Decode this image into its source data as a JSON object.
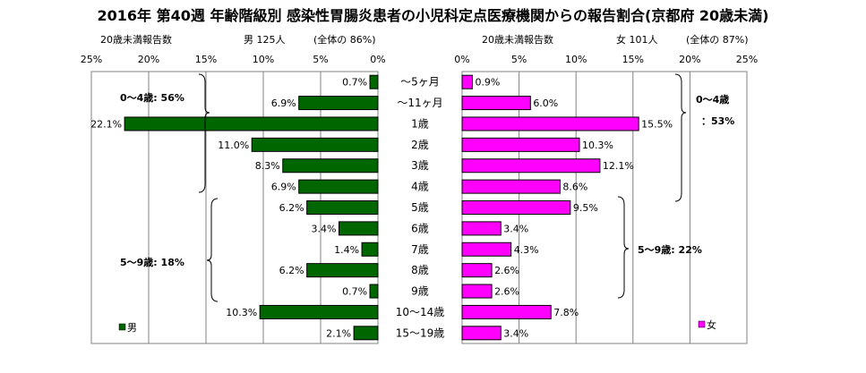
{
  "title": "2016年 第40週 年齢階級別 感染性胃腸炎患者の小児科定点医療機関からの報告割合(京都府 20歳未満)",
  "left_header": {
    "caption": "20歳未満報告数",
    "label": "男 125人",
    "paren": "(全体の 86%)"
  },
  "right_header": {
    "caption": "20歳未満報告数",
    "label": "女 101人",
    "paren": "(全体の 87%)"
  },
  "colors": {
    "male": "#006600",
    "female": "#ff00ff"
  },
  "chart_data": {
    "type": "bar",
    "orientation": "horizontal-butterfly",
    "categories": [
      "～5ヶ月",
      "～11ヶ月",
      "1歳",
      "2歳",
      "3歳",
      "4歳",
      "5歳",
      "6歳",
      "7歳",
      "8歳",
      "9歳",
      "10～14歳",
      "15～19歳"
    ],
    "series": [
      {
        "name": "男",
        "values": [
          0.7,
          6.9,
          22.1,
          11.0,
          8.3,
          6.9,
          6.2,
          3.4,
          1.4,
          6.2,
          0.7,
          10.3,
          2.1
        ],
        "labels": [
          "0.7%",
          "6.9%",
          "22.1%",
          "11.0%",
          "8.3%",
          "6.9%",
          "6.2%",
          "3.4%",
          "1.4%",
          "6.2%",
          "0.7%",
          "10.3%",
          "2.1%"
        ]
      },
      {
        "name": "女",
        "values": [
          0.9,
          6.0,
          15.5,
          10.3,
          12.1,
          8.6,
          9.5,
          3.4,
          4.3,
          2.6,
          2.6,
          7.8,
          3.4
        ],
        "labels": [
          "0.9%",
          "6.0%",
          "15.5%",
          "10.3%",
          "12.1%",
          "8.6%",
          "9.5%",
          "3.4%",
          "4.3%",
          "2.6%",
          "2.6%",
          "7.8%",
          "3.4%"
        ]
      }
    ],
    "x_ticks_left": [
      "25%",
      "20%",
      "15%",
      "10%",
      "5%",
      "0%"
    ],
    "x_ticks_right": [
      "0%",
      "5%",
      "10%",
      "15%",
      "20%",
      "25%"
    ],
    "xlim": [
      0,
      25
    ],
    "grid": true,
    "group_labels": {
      "male": [
        "0～4歳: 56%",
        "5～9歳: 18%"
      ],
      "female": [
        "0～4歳",
        "：53%",
        "5～9歳: 22%"
      ]
    },
    "legend": {
      "male": "男",
      "female": "女"
    }
  }
}
